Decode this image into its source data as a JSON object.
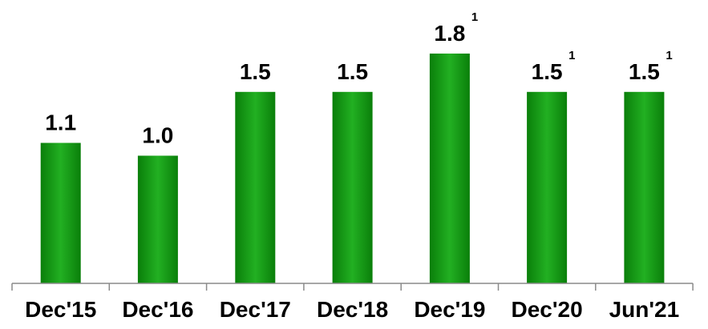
{
  "chart_data": {
    "type": "bar",
    "categories": [
      "Dec'15",
      "Dec'16",
      "Dec'17",
      "Dec'18",
      "Dec'19",
      "Dec'20",
      "Jun'21"
    ],
    "values": [
      1.1,
      1.0,
      1.5,
      1.5,
      1.8,
      1.5,
      1.5
    ],
    "data_labels": [
      "1.1",
      "1.0",
      "1.5",
      "1.5",
      "1.8",
      "1.5",
      "1.5"
    ],
    "footnote_marks": [
      "",
      "",
      "",
      "",
      "1",
      "1",
      "1"
    ],
    "title": "",
    "xlabel": "",
    "ylabel": "",
    "ylim": [
      0,
      2.0
    ],
    "grid": false,
    "legend": "none",
    "colors": {
      "bar_light": "#22b022",
      "bar_mid": "#119a11",
      "bar_dark": "#0a7f0a",
      "axis": "#8a8a8a",
      "text": "#000000"
    }
  }
}
